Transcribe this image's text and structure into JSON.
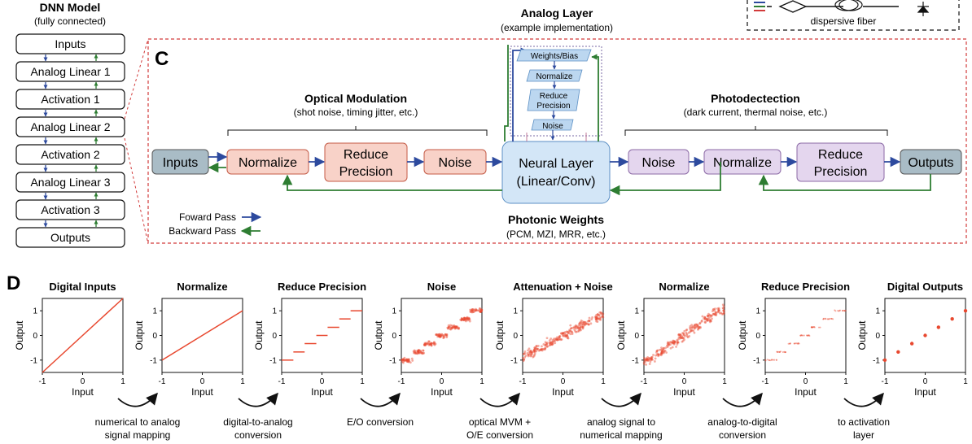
{
  "dnn": {
    "title": "DNN Model",
    "subtitle": "(fully connected)",
    "layers": [
      "Inputs",
      "Analog Linear 1",
      "Activation 1",
      "Analog Linear 2",
      "Activation 2",
      "Analog Linear 3",
      "Activation 3",
      "Outputs"
    ]
  },
  "analog": {
    "title": "Analog Layer",
    "subtitle": "(example implementation)"
  },
  "fiber": {
    "label": "dispersive fiber"
  },
  "panel_c": {
    "letter": "C",
    "optical_modulation": {
      "title": "Optical Modulation",
      "subtitle": "(shot noise, timing jitter, etc.)"
    },
    "photodetection": {
      "title": "Photodectection",
      "subtitle": "(dark current, thermal noise, etc.)"
    },
    "photonic_weights": {
      "title": "Photonic Weights",
      "subtitle": "(PCM, MZI, MRR, etc.)"
    },
    "inputs": "Inputs",
    "normalize": "Normalize",
    "reduce_precision_1": "Reduce",
    "reduce_precision_2": "Precision",
    "noise": "Noise",
    "neural_layer_1": "Neural Layer",
    "neural_layer_2": "(Linear/Conv)",
    "noise_out": "Noise",
    "normalize_out": "Normalize",
    "reduce_out_1": "Reduce",
    "reduce_out_2": "Precision",
    "outputs": "Outputs",
    "stack": {
      "weights": "Weights/Bias",
      "normalize": "Normalize",
      "reduce_1": "Reduce",
      "reduce_2": "Precision",
      "noise": "Noise"
    },
    "legend": {
      "forward": "Foward Pass",
      "backward": "Backward Pass"
    }
  },
  "panel_d": {
    "letter": "D",
    "xlabel": "Input",
    "ylabel": "Output",
    "ticks": [
      "-1",
      "0",
      "1"
    ],
    "transitions": [
      [
        "numerical to analog",
        "signal mapping"
      ],
      [
        "digital-to-analog",
        "conversion"
      ],
      [
        "E/O conversion"
      ],
      [
        "optical MVM +",
        "O/E conversion"
      ],
      [
        "analog signal to",
        "numerical mapping"
      ],
      [
        "analog-to-digital",
        "conversion"
      ],
      [
        "to activation",
        "layer"
      ]
    ]
  },
  "colors": {
    "forward": "#2d4a9e",
    "backward": "#2e7d32",
    "dashed_red": "#d23b3b",
    "plot_red": "#e8482f",
    "input_box": "#a9bcc6",
    "mod_box": "#f8d2c8",
    "mod_border": "#c45a45",
    "neural_box": "#d3e6f7",
    "neural_border": "#5b8fc4",
    "det_box": "#e4d6ee",
    "det_border": "#8c6aa6"
  },
  "chart_data": [
    {
      "type": "line",
      "title": "Digital Inputs",
      "x": [
        -1,
        1
      ],
      "y": [
        -1.5,
        1.5
      ],
      "xlim": [
        -1,
        1
      ],
      "ylim": [
        -1.5,
        1.5
      ]
    },
    {
      "type": "line",
      "title": "Normalize",
      "x": [
        -1,
        1
      ],
      "y": [
        -1,
        1
      ],
      "xlim": [
        -1,
        1
      ],
      "ylim": [
        -1.5,
        1.5
      ]
    },
    {
      "type": "line",
      "title": "Reduce Precision",
      "x": [
        -1,
        -0.71,
        -0.43,
        -0.14,
        0.14,
        0.43,
        0.71,
        1
      ],
      "y": [
        -1,
        -0.67,
        -0.33,
        0,
        0.33,
        0.67,
        1,
        1
      ],
      "xlim": [
        -1,
        1
      ],
      "ylim": [
        -1.5,
        1.5
      ]
    },
    {
      "type": "scatter",
      "title": "Noise",
      "x": [
        -1,
        -0.71,
        -0.43,
        -0.14,
        0.14,
        0.43,
        0.71,
        1
      ],
      "y": [
        -1,
        -0.67,
        -0.33,
        0,
        0.33,
        0.67,
        1,
        1
      ],
      "xlim": [
        -1,
        1
      ],
      "ylim": [
        -1.5,
        1.5
      ]
    },
    {
      "type": "scatter",
      "title": "Attenuation + Noise",
      "x": [
        -1,
        -0.71,
        -0.43,
        -0.14,
        0.14,
        0.43,
        0.71,
        1
      ],
      "y": [
        -0.75,
        -0.5,
        -0.25,
        0,
        0.25,
        0.5,
        0.75,
        0.75
      ],
      "xlim": [
        -1,
        1
      ],
      "ylim": [
        -1.5,
        1.5
      ]
    },
    {
      "type": "scatter",
      "title": "Normalize",
      "x": [
        -1,
        -0.71,
        -0.43,
        -0.14,
        0.14,
        0.43,
        0.71,
        1
      ],
      "y": [
        -1,
        -0.67,
        -0.33,
        0,
        0.33,
        0.67,
        1,
        1
      ],
      "xlim": [
        -1,
        1
      ],
      "ylim": [
        -1.5,
        1.5
      ]
    },
    {
      "type": "scatter",
      "title": "Reduce Precision",
      "x": [
        -1,
        -0.71,
        -0.43,
        -0.14,
        0.14,
        0.43,
        0.71,
        1
      ],
      "y": [
        -1,
        -0.67,
        -0.33,
        0,
        0.33,
        0.67,
        1,
        1
      ],
      "xlim": [
        -1,
        1
      ],
      "ylim": [
        -1.5,
        1.5
      ]
    },
    {
      "type": "scatter",
      "title": "Digital Outputs",
      "x": [
        -1,
        -0.67,
        -0.33,
        0,
        0.33,
        0.67,
        1
      ],
      "y": [
        -1,
        -0.67,
        -0.33,
        0,
        0.33,
        0.67,
        1
      ],
      "xlim": [
        -1,
        1
      ],
      "ylim": [
        -1.5,
        1.5
      ]
    }
  ]
}
